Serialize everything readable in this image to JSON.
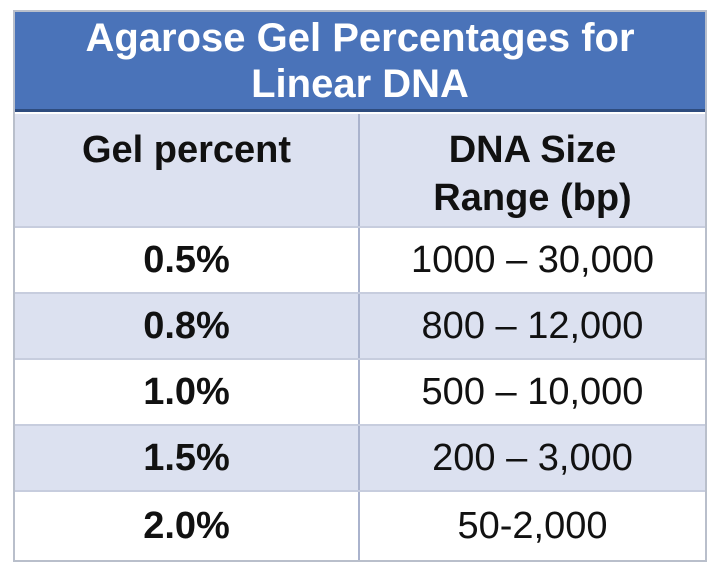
{
  "table": {
    "title": "Agarose Gel Percentages for Linear DNA",
    "header": {
      "col1": "Gel percent",
      "col2": "DNA Size Range (bp)"
    },
    "rows": [
      {
        "gel_percent": "0.5%",
        "dna_size_range": "1000 – 30,000"
      },
      {
        "gel_percent": "0.8%",
        "dna_size_range": "800 – 12,000"
      },
      {
        "gel_percent": "1.0%",
        "dna_size_range": "500 – 10,000"
      },
      {
        "gel_percent": "1.5%",
        "dna_size_range": "200 – 3,000"
      },
      {
        "gel_percent": "2.0%",
        "dna_size_range": "50-2,000"
      }
    ]
  },
  "colors": {
    "title_bg": "#4a73b9",
    "title_text": "#ffffff",
    "title_divider": "#2e4c7e",
    "band_row_bg": "#dce1f0",
    "white_row_bg": "#ffffff",
    "grid_line": "#aab3cd",
    "row_separator": "#c7cdde",
    "outer_border": "#b9bfcb",
    "body_text": "#111111"
  },
  "chart_data": {
    "type": "table",
    "title": "Agarose Gel Percentages for Linear DNA",
    "columns": [
      "Gel percent",
      "DNA Size Range (bp)"
    ],
    "rows": [
      [
        "0.5%",
        "1000 – 30,000"
      ],
      [
        "0.8%",
        "800 – 12,000"
      ],
      [
        "1.0%",
        "500 – 10,000"
      ],
      [
        "1.5%",
        "200 – 3,000"
      ],
      [
        "2.0%",
        "50-2,000"
      ]
    ]
  }
}
